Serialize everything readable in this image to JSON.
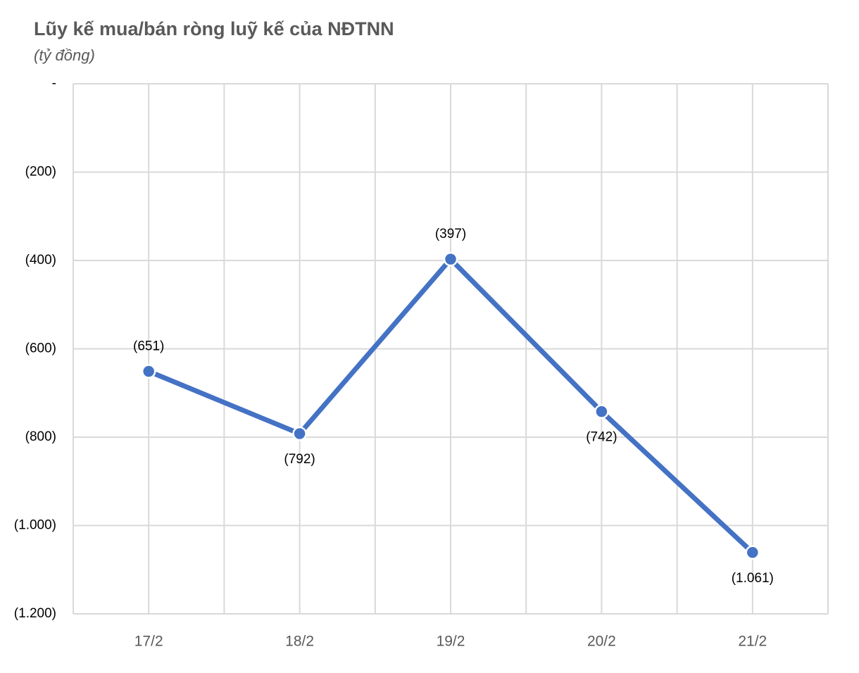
{
  "chart_data": {
    "type": "line",
    "title": "Lũy kế mua/bán ròng luỹ kế của NĐTNN",
    "subtitle": "(tỷ đồng)",
    "categories": [
      "17/2",
      "18/2",
      "19/2",
      "20/2",
      "21/2"
    ],
    "series": [
      {
        "color": "#4472c4",
        "values": [
          -651,
          -792,
          -397,
          -742,
          -1061
        ],
        "value_labels": [
          "(651)",
          "(792)",
          "(397)",
          "(742)",
          "(1.061)"
        ]
      }
    ],
    "ylim": [
      -1200,
      0
    ],
    "yticks": [
      {
        "value": 0,
        "label": "-"
      },
      {
        "value": -200,
        "label": "(200)"
      },
      {
        "value": -400,
        "label": "(400)"
      },
      {
        "value": -600,
        "label": "(600)"
      },
      {
        "value": -800,
        "label": "(800)"
      },
      {
        "value": -1000,
        "label": "(1.000)"
      },
      {
        "value": -1200,
        "label": "(1.200)"
      }
    ],
    "grid": true
  }
}
